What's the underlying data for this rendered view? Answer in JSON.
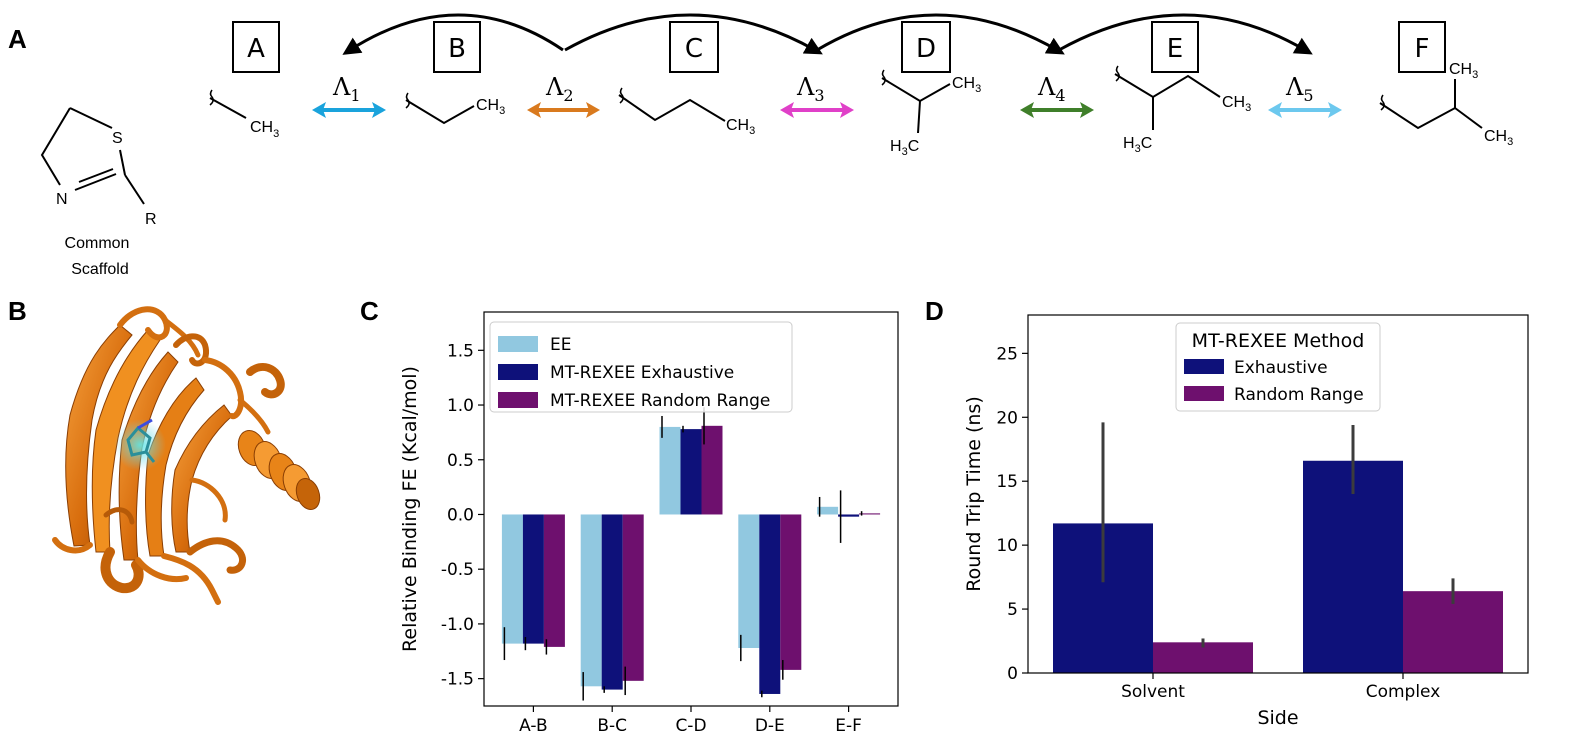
{
  "panels": {
    "a": "A",
    "b": "B",
    "c": "C",
    "d": "D"
  },
  "scaffold": {
    "S": "S",
    "N": "N",
    "R": "R",
    "caption_line1": "Common",
    "caption_line2": "Scaffold"
  },
  "states": [
    "A",
    "B",
    "C",
    "D",
    "E",
    "F"
  ],
  "lambdas": [
    {
      "sym": "Λ",
      "sub": "1",
      "color": "#1aa3dc"
    },
    {
      "sym": "Λ",
      "sub": "2",
      "color": "#d97a1e"
    },
    {
      "sym": "Λ",
      "sub": "3",
      "color": "#e040c8"
    },
    {
      "sym": "Λ",
      "sub": "4",
      "color": "#3f7f2a"
    },
    {
      "sym": "Λ",
      "sub": "5",
      "color": "#6cc8ee"
    }
  ],
  "chem": {
    "ch": "CH",
    "hc": "H",
    "c": "C",
    "three": "3"
  },
  "chart_data": [
    {
      "type": "bar",
      "panel": "C",
      "categories": [
        "A-B",
        "B-C",
        "C-D",
        "D-E",
        "E-F"
      ],
      "series": [
        {
          "name": "EE",
          "color": "#91c8e0",
          "values": [
            -1.18,
            -1.57,
            0.8,
            -1.22,
            0.07
          ],
          "err": [
            0.15,
            0.13,
            0.1,
            0.12,
            0.09
          ]
        },
        {
          "name": "MT-REXEE Exhaustive",
          "color": "#0e117a",
          "values": [
            -1.18,
            -1.6,
            0.78,
            -1.64,
            -0.02
          ],
          "err": [
            0.06,
            0.03,
            0.03,
            0.03,
            0.24
          ]
        },
        {
          "name": "MT-REXEE Random Range",
          "color": "#6e106e",
          "values": [
            -1.21,
            -1.52,
            0.81,
            -1.42,
            0.01
          ],
          "err": [
            0.07,
            0.13,
            0.17,
            0.09,
            0.02
          ]
        }
      ],
      "ylabel": "Relative Binding FE (Kcal/mol)",
      "xlabel": "",
      "ylim": [
        -1.75,
        1.85
      ],
      "yticks": [
        "-1.5",
        "-1.0",
        "-0.5",
        "0.0",
        "0.5",
        "1.0",
        "1.5"
      ],
      "legend": "top-left"
    },
    {
      "type": "bar",
      "panel": "D",
      "categories": [
        "Solvent",
        "Complex"
      ],
      "legend_title": "MT-REXEE Method",
      "series": [
        {
          "name": "Exhaustive",
          "color": "#0e117a",
          "values": [
            11.7,
            16.6
          ],
          "err_low": [
            7.1,
            14.0
          ],
          "err_high": [
            19.6,
            19.4
          ]
        },
        {
          "name": "Random Range",
          "color": "#6e106e",
          "values": [
            2.4,
            6.4
          ],
          "err_low": [
            2.0,
            5.4
          ],
          "err_high": [
            2.7,
            7.4
          ]
        }
      ],
      "ylabel": "Round Trip Time (ns)",
      "xlabel": "Side",
      "ylim": [
        0,
        28
      ],
      "yticks": [
        "0",
        "5",
        "10",
        "15",
        "20",
        "25"
      ],
      "legend": "top-center"
    }
  ]
}
